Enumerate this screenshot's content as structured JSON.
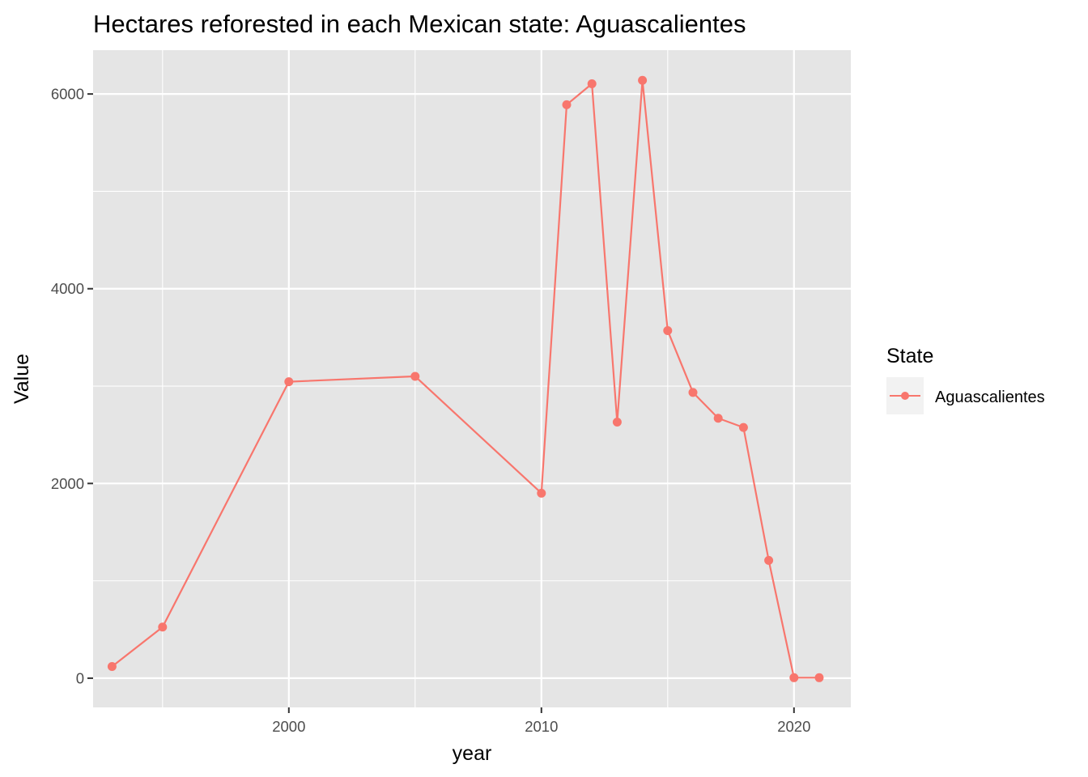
{
  "chart_data": {
    "type": "line",
    "title": "Hectares reforested in each Mexican state: Aguascalientes",
    "xlabel": "year",
    "ylabel": "Value",
    "x_ticks": [
      2000,
      2010,
      2020
    ],
    "x_minor_ticks": [
      1995,
      2005,
      2015
    ],
    "y_ticks": [
      0,
      2000,
      4000,
      6000
    ],
    "y_minor_ticks": [
      1000,
      3000,
      5000
    ],
    "xlim": [
      1992.25,
      2022.25
    ],
    "ylim": [
      -300,
      6450
    ],
    "grid": true,
    "panel_background": "#e5e5e5",
    "grid_color": "#ffffff",
    "legend": {
      "title": "State",
      "position": "right",
      "entries": [
        "Aguascalientes"
      ]
    },
    "series": [
      {
        "name": "Aguascalientes",
        "color": "#f8766d",
        "x": [
          1993,
          1995,
          2000,
          2005,
          2010,
          2011,
          2012,
          2013,
          2014,
          2015,
          2016,
          2017,
          2018,
          2019,
          2020,
          2021
        ],
        "y": [
          120,
          525,
          3045,
          3100,
          1900,
          5890,
          6105,
          2630,
          6140,
          3570,
          2935,
          2670,
          2575,
          1210,
          5,
          5
        ]
      }
    ]
  }
}
